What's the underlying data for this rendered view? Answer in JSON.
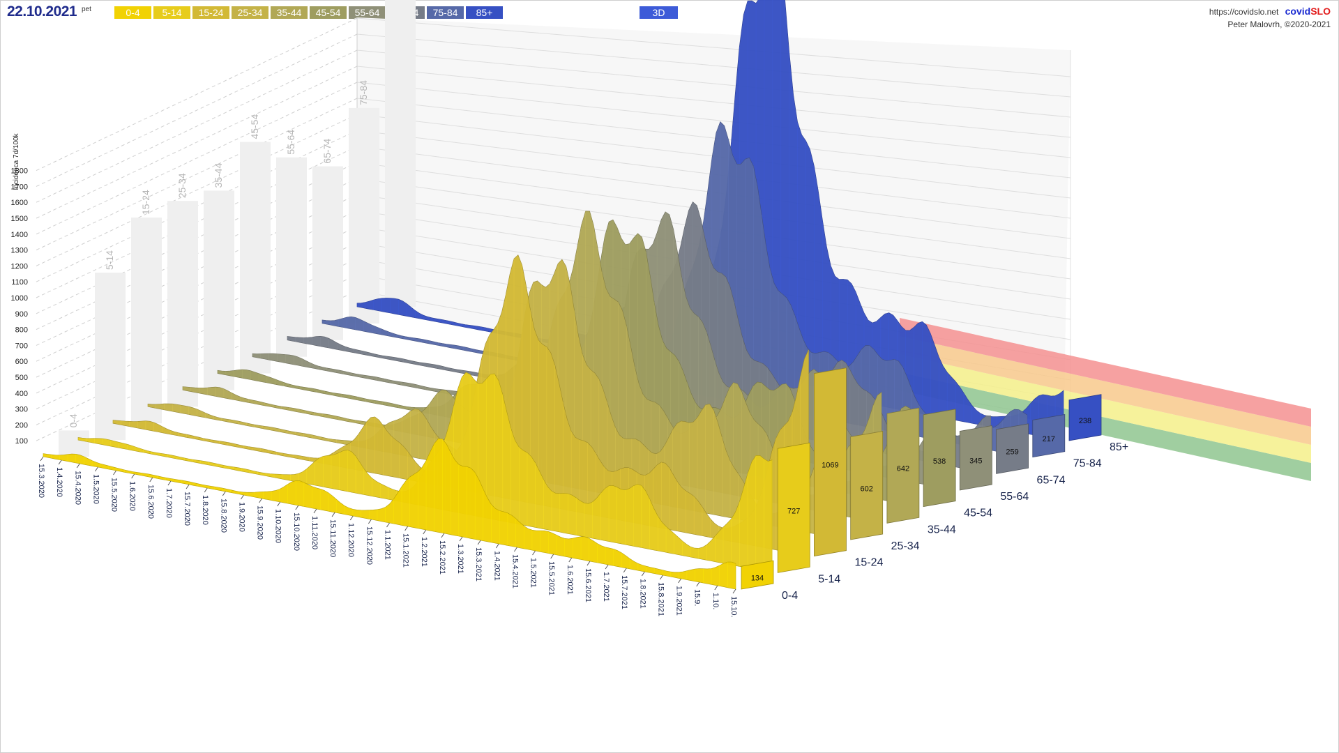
{
  "header": {
    "date": "22.10.2021",
    "day_of_week": "pet",
    "age_buttons": [
      {
        "label": "0-4",
        "color": "#f1d203"
      },
      {
        "label": "5-14",
        "color": "#e7cc1b"
      },
      {
        "label": "15-24",
        "color": "#d2b935"
      },
      {
        "label": "25-34",
        "color": "#c4b247"
      },
      {
        "label": "35-44",
        "color": "#b1a856"
      },
      {
        "label": "45-54",
        "color": "#9e9d60"
      },
      {
        "label": "55-64",
        "color": "#8f9078"
      },
      {
        "label": "65-74",
        "color": "#767c88"
      },
      {
        "label": "75-84",
        "color": "#5669a8"
      },
      {
        "label": "85+",
        "color": "#3650c3"
      }
    ],
    "mode_button": "3D",
    "url": "https://covidslo.net",
    "brand_a": "covid",
    "brand_b": "SLO",
    "author": "Peter Malovrh, ©2020-2021"
  },
  "chart_data": {
    "type": "area",
    "title": "",
    "ylabel": "Incidenca 7d/100k",
    "ylim": [
      0,
      1800
    ],
    "y_ticks": [
      100,
      200,
      300,
      400,
      500,
      600,
      700,
      800,
      900,
      1000,
      1100,
      1200,
      1300,
      1400,
      1500,
      1600,
      1700,
      1800
    ],
    "x_ticks": [
      "15.3.2020",
      "1.4.2020",
      "15.4.2020",
      "1.5.2020",
      "15.5.2020",
      "1.6.2020",
      "15.6.2020",
      "1.7.2020",
      "15.7.2020",
      "1.8.2020",
      "15.8.2020",
      "1.9.2020",
      "15.9.2020",
      "1.10.2020",
      "15.10.2020",
      "1.11.2020",
      "15.11.2020",
      "1.12.2020",
      "15.12.2020",
      "1.1.2021",
      "15.1.2021",
      "1.2.2021",
      "15.2.2021",
      "1.3.2021",
      "15.3.2021",
      "1.4.2021",
      "15.4.2021",
      "1.5.2021",
      "15.5.2021",
      "1.6.2021",
      "15.6.2021",
      "1.7.2021",
      "15.7.2021",
      "1.8.2021",
      "15.8.2021",
      "1.9.2021",
      "15.9.",
      "1.10.",
      "15.10."
    ],
    "series": [
      {
        "name": "0-4",
        "color": "#f1d203",
        "last_value": 134,
        "wave_peaks": [
          30,
          120,
          420,
          80,
          134
        ]
      },
      {
        "name": "5-14",
        "color": "#e7cc1b",
        "last_value": 727,
        "wave_peaks": [
          20,
          200,
          700,
          300,
          727
        ]
      },
      {
        "name": "15-24",
        "color": "#d2b935",
        "last_value": 1069,
        "wave_peaks": [
          30,
          260,
          1050,
          250,
          1069
        ]
      },
      {
        "name": "25-34",
        "color": "#c4b247",
        "last_value": 602,
        "wave_peaks": [
          30,
          220,
          1000,
          500,
          602
        ]
      },
      {
        "name": "35-44",
        "color": "#b1a856",
        "last_value": 642,
        "wave_peaks": [
          30,
          220,
          1050,
          480,
          642
        ]
      },
      {
        "name": "45-54",
        "color": "#9e9d60",
        "last_value": 538,
        "wave_peaks": [
          30,
          200,
          1000,
          450,
          538
        ]
      },
      {
        "name": "55-64",
        "color": "#8f9078",
        "last_value": 345,
        "wave_peaks": [
          30,
          180,
          900,
          380,
          345
        ]
      },
      {
        "name": "65-74",
        "color": "#767c88",
        "last_value": 259,
        "wave_peaks": [
          30,
          160,
          820,
          330,
          259
        ]
      },
      {
        "name": "75-84",
        "color": "#5669a8",
        "last_value": 217,
        "wave_peaks": [
          40,
          180,
          1100,
          300,
          217
        ]
      },
      {
        "name": "85+",
        "color": "#3650c3",
        "last_value": 238,
        "wave_peaks": [
          60,
          200,
          1750,
          280,
          238
        ]
      }
    ],
    "threshold_bands": [
      {
        "color": "#8fc58f"
      },
      {
        "color": "#f4f08a"
      },
      {
        "color": "#f8c98c"
      },
      {
        "color": "#f59090"
      }
    ],
    "grid": true
  }
}
